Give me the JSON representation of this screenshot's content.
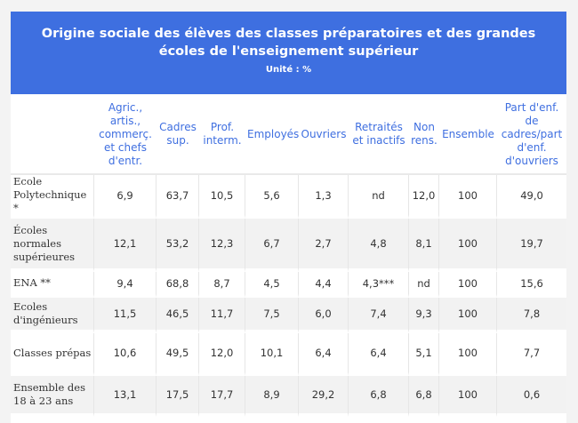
{
  "header": {
    "title": "Origine sociale des élèves des classes préparatoires et des grandes écoles de l'enseignement supérieur",
    "unit": "Unité : %"
  },
  "table": {
    "columns": [
      "",
      "Agric., artis., commerç. et chefs d'entr.",
      "Cadres sup.",
      "Prof. interm.",
      "Employés",
      "Ouvriers",
      "Retraités et inactifs",
      "Non rens.",
      "Ensemble",
      "Part d'enf. de cadres/part d'enf. d'ouvriers"
    ],
    "rows": [
      [
        "Ecole Polytechnique *",
        "6,9",
        "63,7",
        "10,5",
        "5,6",
        "1,3",
        "nd",
        "12,0",
        "100",
        "49,0"
      ],
      [
        "Écoles normales supérieures",
        "12,1",
        "53,2",
        "12,3",
        "6,7",
        "2,7",
        "4,8",
        "8,1",
        "100",
        "19,7"
      ],
      [
        "ENA **",
        "9,4",
        "68,8",
        "8,7",
        "4,5",
        "4,4",
        "4,3***",
        "nd",
        "100",
        "15,6"
      ],
      [
        "Ecoles d'ingénieurs",
        "11,5",
        "46,5",
        "11,7",
        "7,5",
        "6,0",
        "7,4",
        "9,3",
        "100",
        "7,8"
      ],
      [
        "Classes prépas",
        "10,6",
        "49,5",
        "12,0",
        "10,1",
        "6,4",
        "6,4",
        "5,1",
        "100",
        "7,7"
      ],
      [
        "Ensemble des 18 à 23 ans",
        "13,1",
        "17,5",
        "17,7",
        "8,9",
        "29,2",
        "6,8",
        "6,8",
        "100",
        "0,6"
      ]
    ]
  },
  "colors": {
    "banner": "#3e6fe0",
    "header_text": "#3f6fe0",
    "stripe": "#f2f2f2"
  }
}
